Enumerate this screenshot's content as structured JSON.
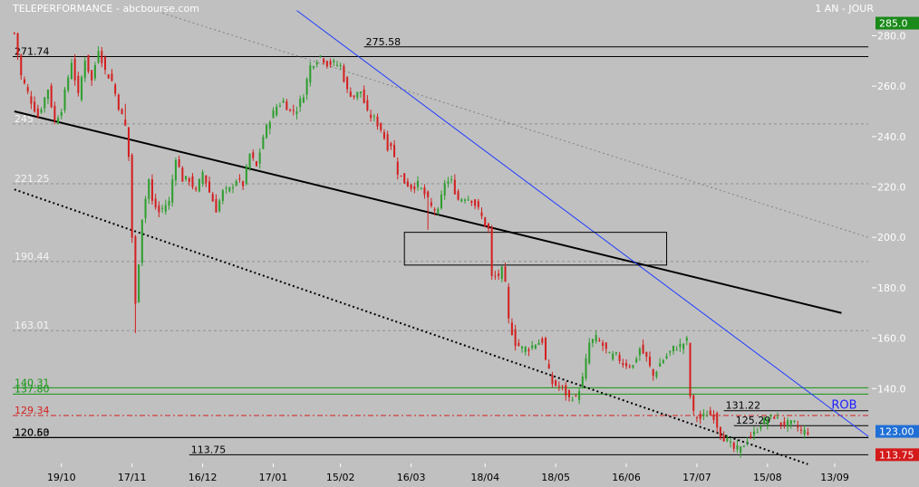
{
  "header": {
    "title": "TELEPERFORMANCE - abcbourse.com",
    "period": "1 AN - JOUR"
  },
  "colors": {
    "background": "#c0c0c0",
    "up_candle": "#2e9e2e",
    "down_candle": "#d42020",
    "trend_blue": "#1f3cff",
    "trend_black": "#000000",
    "support_green": "#149614",
    "dashed_red": "#d42020",
    "price_badge_green": "#1a8a1a",
    "price_badge_gray": "#1f6fd6",
    "price_badge_red": "#d41a1a",
    "rob_label": "#2020ff"
  },
  "chart_data": {
    "type": "candlestick",
    "title": "TELEPERFORMANCE - abcbourse.com",
    "period": "1 AN - JOUR",
    "ylim": [
      111,
      287
    ],
    "y_ticks": [
      140,
      160,
      180,
      200,
      220,
      240,
      260,
      280
    ],
    "x_ticks": [
      "19/10",
      "17/11",
      "16/12",
      "17/01",
      "15/02",
      "16/03",
      "18/04",
      "18/05",
      "16/06",
      "17/07",
      "15/08",
      "13/09"
    ],
    "x_tick_index": [
      14,
      35,
      56,
      77,
      97,
      118,
      140,
      161,
      182,
      203,
      224,
      244
    ],
    "n_sessions": 255,
    "anchors": [
      [
        0,
        281
      ],
      [
        2,
        264
      ],
      [
        5,
        254
      ],
      [
        7,
        248
      ],
      [
        10,
        259
      ],
      [
        12,
        246
      ],
      [
        14,
        251
      ],
      [
        17,
        270
      ],
      [
        19,
        256
      ],
      [
        21,
        271
      ],
      [
        23,
        262
      ],
      [
        25,
        275
      ],
      [
        27,
        266
      ],
      [
        29,
        262
      ],
      [
        31,
        252
      ],
      [
        33,
        244
      ],
      [
        34,
        232
      ],
      [
        35,
        200
      ],
      [
        36,
        173
      ],
      [
        38,
        208
      ],
      [
        40,
        223
      ],
      [
        41,
        214
      ],
      [
        43,
        210
      ],
      [
        45,
        213
      ],
      [
        46,
        214
      ],
      [
        48,
        232
      ],
      [
        50,
        223
      ],
      [
        52,
        223
      ],
      [
        54,
        218
      ],
      [
        56,
        226
      ],
      [
        58,
        218
      ],
      [
        60,
        211
      ],
      [
        62,
        218
      ],
      [
        64,
        219
      ],
      [
        66,
        223
      ],
      [
        68,
        221
      ],
      [
        70,
        233
      ],
      [
        72,
        228
      ],
      [
        74,
        240
      ],
      [
        76,
        247
      ],
      [
        78,
        252
      ],
      [
        80,
        254
      ],
      [
        82,
        250
      ],
      [
        84,
        251
      ],
      [
        86,
        257
      ],
      [
        88,
        268
      ],
      [
        91,
        272
      ],
      [
        93,
        269
      ],
      [
        95,
        269
      ],
      [
        97,
        268
      ],
      [
        99,
        258
      ],
      [
        101,
        256
      ],
      [
        103,
        258
      ],
      [
        105,
        249
      ],
      [
        107,
        247
      ],
      [
        109,
        243
      ],
      [
        111,
        236
      ],
      [
        112,
        237
      ],
      [
        114,
        226
      ],
      [
        116,
        222
      ],
      [
        118,
        220
      ],
      [
        120,
        221
      ],
      [
        122,
        217
      ],
      [
        124,
        212
      ],
      [
        126,
        210
      ],
      [
        128,
        222
      ],
      [
        130,
        222
      ],
      [
        132,
        215
      ],
      [
        134,
        216
      ],
      [
        136,
        215
      ],
      [
        138,
        211
      ],
      [
        140,
        205
      ],
      [
        141,
        203
      ],
      [
        142,
        184
      ],
      [
        144,
        185
      ],
      [
        145,
        187
      ],
      [
        146,
        181
      ],
      [
        147,
        167
      ],
      [
        149,
        158
      ],
      [
        151,
        156
      ],
      [
        153,
        156
      ],
      [
        155,
        158
      ],
      [
        157,
        159
      ],
      [
        158,
        151
      ],
      [
        160,
        142
      ],
      [
        163,
        140
      ],
      [
        165,
        136
      ],
      [
        166,
        137
      ],
      [
        167,
        136
      ],
      [
        169,
        144
      ],
      [
        171,
        158
      ],
      [
        173,
        160
      ],
      [
        175,
        157
      ],
      [
        177,
        153
      ],
      [
        179,
        153
      ],
      [
        181,
        150
      ],
      [
        184,
        149
      ],
      [
        186,
        156
      ],
      [
        188,
        152
      ],
      [
        190,
        145
      ],
      [
        192,
        150
      ],
      [
        194,
        153
      ],
      [
        196,
        156
      ],
      [
        198,
        157
      ],
      [
        200,
        159
      ],
      [
        201,
        137
      ],
      [
        202,
        130
      ],
      [
        204,
        128
      ],
      [
        206,
        130
      ],
      [
        208,
        129
      ],
      [
        210,
        122
      ],
      [
        212,
        119
      ],
      [
        214,
        116
      ],
      [
        216,
        116
      ],
      [
        218,
        120
      ],
      [
        220,
        122
      ],
      [
        222,
        126
      ],
      [
        224,
        128
      ],
      [
        226,
        129
      ],
      [
        228,
        126
      ],
      [
        230,
        126
      ],
      [
        232,
        126
      ],
      [
        234,
        123
      ],
      [
        236,
        123
      ]
    ],
    "horizontal_levels": [
      {
        "label": "275.58",
        "value": 275.58,
        "color": "#000000",
        "x_from": 104,
        "x_to": 254,
        "label_x": 104
      },
      {
        "label": "271.74",
        "value": 271.74,
        "color": "#000000",
        "x_from": 0,
        "x_to": 254,
        "label_x": 0
      },
      {
        "label": "245",
        "value": 245,
        "color": "#909090",
        "dashed": true,
        "x_from": 0,
        "x_to": 254,
        "label_x": 0
      },
      {
        "label": "221.25",
        "value": 221.25,
        "color": "#909090",
        "dashed": true,
        "x_from": 0,
        "x_to": 254,
        "label_x": 0
      },
      {
        "label": "190.44",
        "value": 190.44,
        "color": "#909090",
        "dashed": true,
        "x_from": 0,
        "x_to": 254,
        "label_x": 0
      },
      {
        "label": "163.01",
        "value": 163.01,
        "color": "#909090",
        "dashed": true,
        "x_from": 0,
        "x_to": 254,
        "label_x": 0
      },
      {
        "label": "140.31",
        "value": 140.31,
        "color": "#149614",
        "x_from": 0,
        "x_to": 254,
        "label_x": 0
      },
      {
        "label": "137.80",
        "value": 137.8,
        "color": "#149614",
        "x_from": 0,
        "x_to": 254,
        "label_x": 0
      },
      {
        "label": "129.34",
        "value": 129.34,
        "color": "#d42020",
        "dashed": true,
        "x_from": 0,
        "x_to": 254,
        "label_x": 0
      },
      {
        "label": "131.22",
        "value": 131.22,
        "color": "#000000",
        "x_from": 211,
        "x_to": 254,
        "label_x": 211
      },
      {
        "label": "125.29",
        "value": 125.29,
        "color": "#000000",
        "x_from": 214,
        "x_to": 254,
        "label_x": 214
      },
      {
        "label": "120.60",
        "value": 120.6,
        "color": "#000000",
        "x_from": 0,
        "x_to": 254,
        "label_x": 0
      },
      {
        "label": "120.53",
        "value": 120.53,
        "color": "#000000",
        "x_from": 0,
        "x_to": 254,
        "label_x": 0
      },
      {
        "label": "113.75",
        "value": 113.75,
        "color": "#000000",
        "x_from": 52,
        "x_to": 254,
        "label_x": 52
      }
    ],
    "trend_lines": [
      {
        "name": "trend-black-long",
        "color": "#000000",
        "width": 2,
        "dash": "",
        "points": [
          [
            0,
            250
          ],
          [
            246,
            170
          ]
        ]
      },
      {
        "name": "trend-black-dotted",
        "color": "#000000",
        "width": 2,
        "dash": "2,3",
        "points": [
          [
            0,
            219
          ],
          [
            236,
            110
          ]
        ]
      },
      {
        "name": "trend-blue",
        "color": "#1f3cff",
        "width": 1,
        "dash": "",
        "points": [
          [
            84,
            290
          ],
          [
            254,
            121
          ]
        ]
      },
      {
        "name": "trend-gray-dotted",
        "color": "#808080",
        "width": 1,
        "dash": "2,3",
        "points": [
          [
            44,
            289
          ],
          [
            254,
            200
          ]
        ]
      }
    ],
    "boxes": [
      {
        "name": "rectangle-zone",
        "x0": 116,
        "x1": 194,
        "y0": 189,
        "y1": 202
      }
    ],
    "annotations": [
      {
        "text": "ROB",
        "x": 243,
        "y": 132,
        "color": "#2020ff"
      }
    ],
    "price_badges": [
      {
        "label": "285.0",
        "value": 285,
        "color": "#1a8a1a"
      },
      {
        "label": "123.00",
        "value": 123,
        "color": "#1f6fd6"
      },
      {
        "label": "113.75",
        "value": 113.75,
        "color": "#d41a1a"
      }
    ]
  }
}
